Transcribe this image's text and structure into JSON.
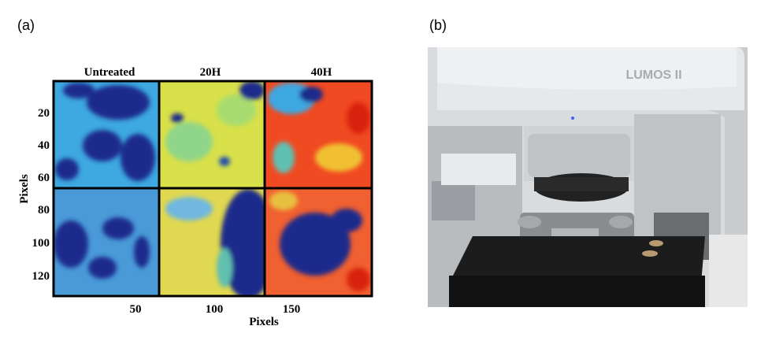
{
  "panel_a": {
    "label": "(a)",
    "columns": [
      "Untreated",
      "20H",
      "40H"
    ],
    "yticks": [
      "20",
      "40",
      "60",
      "80",
      "100",
      "120"
    ],
    "xticks": [
      "50",
      "100",
      "150"
    ],
    "xlabel": "Pixels",
    "ylabel": "Pixels"
  },
  "panel_b": {
    "label": "(b)",
    "instrument_label": "LUMOS II"
  }
}
